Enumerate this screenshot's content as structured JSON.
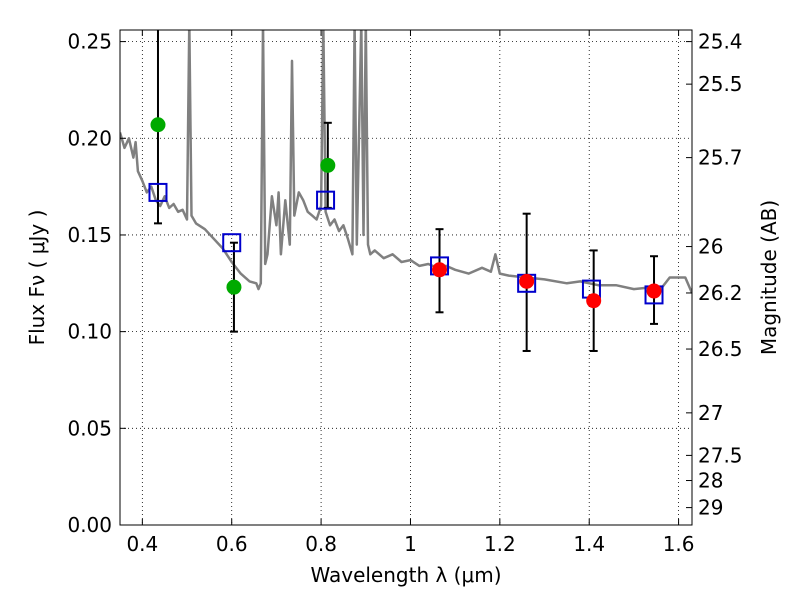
{
  "chart_data": {
    "type": "scatter",
    "title": "",
    "xlabel": "Wavelength  λ (μm)",
    "ylabel": "Flux  Fν  ( μJy )",
    "y2label": "Magnitude (AB)",
    "xlim": [
      0.35,
      1.63
    ],
    "ylim": [
      0.0,
      0.256
    ],
    "grid": true,
    "x_ticks": [
      0.4,
      0.6,
      0.8,
      1.0,
      1.2,
      1.4,
      1.6
    ],
    "x_tick_labels": [
      "0.4",
      "0.6",
      "0.8",
      "1",
      "1.2",
      "1.4",
      "1.6"
    ],
    "y_ticks": [
      0.0,
      0.05,
      0.1,
      0.15,
      0.2,
      0.25
    ],
    "y_tick_labels": [
      "0.00",
      "0.05",
      "0.10",
      "0.15",
      "0.20",
      "0.25"
    ],
    "y2_ticks": [
      {
        "label": "25.4",
        "flux": 0.25
      },
      {
        "label": "25.5",
        "flux": 0.228
      },
      {
        "label": "25.7",
        "flux": 0.19
      },
      {
        "label": "26",
        "flux": 0.144
      },
      {
        "label": "26.2",
        "flux": 0.12
      },
      {
        "label": "26.5",
        "flux": 0.091
      },
      {
        "label": "27",
        "flux": 0.058
      },
      {
        "label": "27.5",
        "flux": 0.036
      },
      {
        "label": "28",
        "flux": 0.023
      },
      {
        "label": "29",
        "flux": 0.009
      }
    ],
    "series": [
      {
        "kind": "line",
        "color": "#808080",
        "x": [
          0.35,
          0.36,
          0.37,
          0.38,
          0.385,
          0.39,
          0.4,
          0.41,
          0.42,
          0.43,
          0.44,
          0.45,
          0.46,
          0.47,
          0.48,
          0.49,
          0.5,
          0.505,
          0.51,
          0.52,
          0.54,
          0.56,
          0.58,
          0.6,
          0.62,
          0.64,
          0.655,
          0.66,
          0.665,
          0.67,
          0.675,
          0.68,
          0.69,
          0.7,
          0.705,
          0.71,
          0.72,
          0.73,
          0.735,
          0.74,
          0.75,
          0.76,
          0.77,
          0.78,
          0.79,
          0.8,
          0.805,
          0.81,
          0.82,
          0.83,
          0.84,
          0.85,
          0.86,
          0.87,
          0.875,
          0.88,
          0.89,
          0.895,
          0.9,
          0.905,
          0.91,
          0.92,
          0.94,
          0.96,
          0.98,
          1.0,
          1.02,
          1.04,
          1.06,
          1.08,
          1.1,
          1.13,
          1.16,
          1.18,
          1.19,
          1.2,
          1.22,
          1.26,
          1.3,
          1.35,
          1.38,
          1.42,
          1.46,
          1.5,
          1.54,
          1.56,
          1.58,
          1.6,
          1.615,
          1.63
        ],
        "values": [
          0.203,
          0.195,
          0.2,
          0.19,
          0.198,
          0.183,
          0.178,
          0.172,
          0.175,
          0.168,
          0.165,
          0.17,
          0.164,
          0.166,
          0.162,
          0.163,
          0.158,
          0.26,
          0.16,
          0.156,
          0.153,
          0.148,
          0.143,
          0.136,
          0.13,
          0.126,
          0.125,
          0.122,
          0.125,
          0.26,
          0.135,
          0.14,
          0.17,
          0.155,
          0.172,
          0.14,
          0.168,
          0.145,
          0.24,
          0.16,
          0.172,
          0.168,
          0.162,
          0.16,
          0.158,
          0.165,
          0.26,
          0.162,
          0.155,
          0.158,
          0.152,
          0.155,
          0.148,
          0.14,
          0.26,
          0.145,
          0.26,
          0.15,
          0.26,
          0.145,
          0.14,
          0.142,
          0.138,
          0.14,
          0.136,
          0.137,
          0.134,
          0.135,
          0.133,
          0.134,
          0.132,
          0.13,
          0.133,
          0.131,
          0.14,
          0.13,
          0.129,
          0.128,
          0.127,
          0.125,
          0.126,
          0.124,
          0.124,
          0.122,
          0.123,
          0.122,
          0.128,
          0.128,
          0.128,
          0.12
        ]
      },
      {
        "kind": "errorbars",
        "color": "#000000",
        "points": [
          {
            "x": 0.435,
            "low": 0.156,
            "high": 0.256
          },
          {
            "x": 0.605,
            "low": 0.1,
            "high": 0.146
          },
          {
            "x": 0.815,
            "low": 0.164,
            "high": 0.208
          },
          {
            "x": 1.065,
            "low": 0.11,
            "high": 0.153
          },
          {
            "x": 1.26,
            "low": 0.09,
            "high": 0.161
          },
          {
            "x": 1.41,
            "low": 0.09,
            "high": 0.142
          },
          {
            "x": 1.545,
            "low": 0.104,
            "high": 0.139
          }
        ]
      },
      {
        "kind": "open-square",
        "color": "#0000cc",
        "x": [
          0.435,
          0.6,
          0.81,
          1.065,
          1.26,
          1.405,
          1.545
        ],
        "values": [
          0.172,
          0.146,
          0.168,
          0.134,
          0.125,
          0.122,
          0.119
        ]
      },
      {
        "kind": "filled-circle",
        "color": "#00aa00",
        "x": [
          0.435,
          0.605,
          0.815
        ],
        "values": [
          0.207,
          0.123,
          0.186
        ]
      },
      {
        "kind": "filled-circle",
        "color": "#ff0000",
        "x": [
          1.065,
          1.26,
          1.41,
          1.545
        ],
        "values": [
          0.132,
          0.126,
          0.116,
          0.121
        ]
      }
    ]
  }
}
